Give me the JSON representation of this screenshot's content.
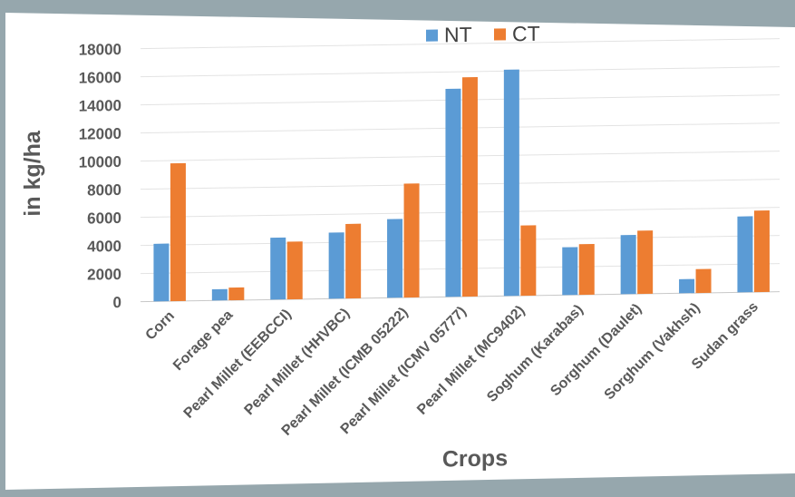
{
  "chart_data": {
    "type": "bar",
    "title": "",
    "xlabel": "Crops",
    "ylabel": "in kg/ha",
    "ylim": [
      0,
      18000
    ],
    "yticks": [
      0,
      2000,
      4000,
      6000,
      8000,
      10000,
      12000,
      14000,
      16000,
      18000
    ],
    "grid": true,
    "legend": "top-center",
    "categories": [
      "Corn",
      "Forage pea",
      "Pearl Millet (EEBCCI)",
      "Pearl Millet (HHVBC)",
      "Pearl Millet (ICMB 05222)",
      "Pearl Millet (ICMV 05777)",
      "Pearl Millet (MC9402)",
      "Soghum (Karabas)",
      "Sorghum (Daulet)",
      "Sorghum (Vakhsh)",
      "Sudan grass"
    ],
    "series": [
      {
        "name": "NT",
        "color": "#5b9bd5",
        "values": [
          4100,
          800,
          4400,
          4700,
          5600,
          14800,
          16100,
          3400,
          4200,
          1000,
          5400
        ]
      },
      {
        "name": "CT",
        "color": "#ed7d31",
        "values": [
          9800,
          900,
          4100,
          5300,
          8100,
          15600,
          5000,
          3600,
          4500,
          1700,
          5800
        ]
      }
    ]
  }
}
